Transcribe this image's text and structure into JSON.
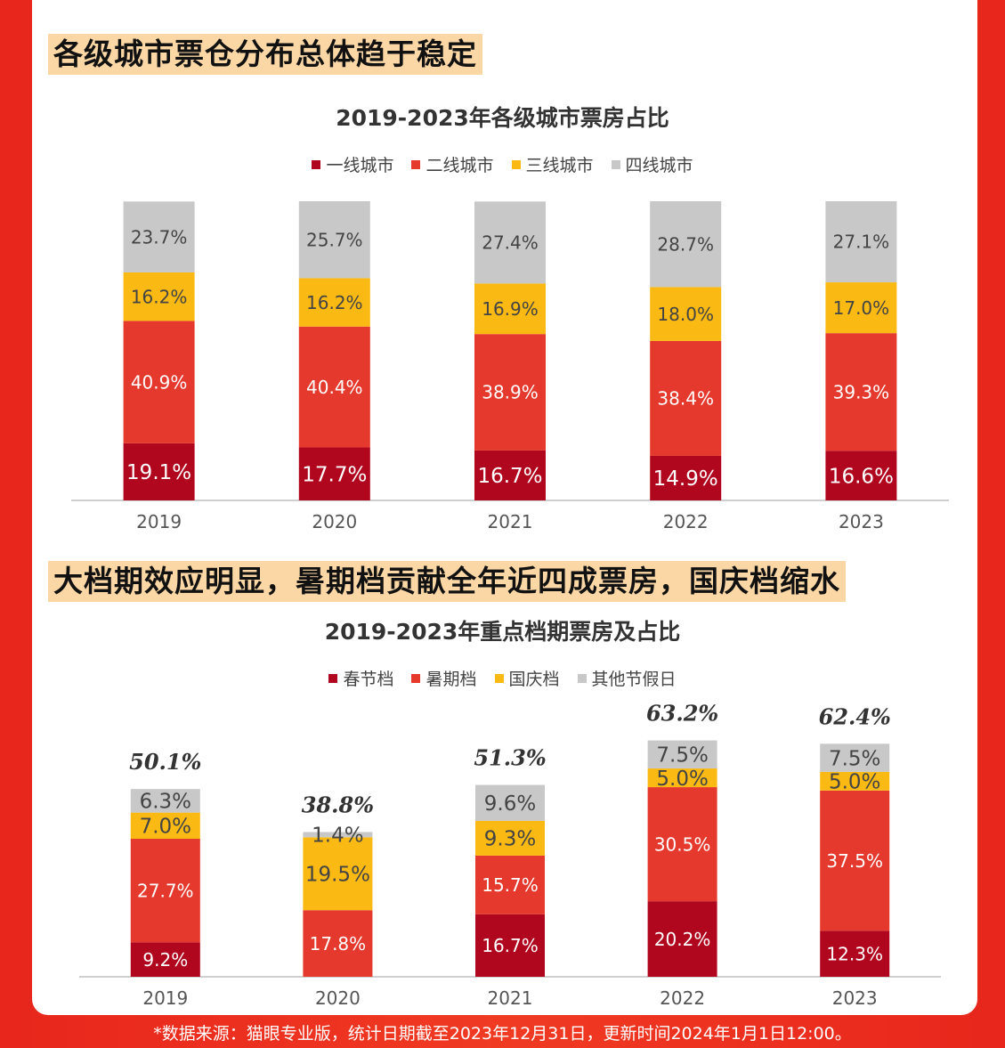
{
  "section1": {
    "headline": "各级城市票仓分布总体趋于稳定"
  },
  "section2": {
    "headline": "大档期效应明显，暑期档贡献全年近四成票房，国庆档缩水"
  },
  "footnote": "*数据来源：猫眼专业版，统计日期截至2023年12月31日，更新时间2024年1月1日12:00。",
  "colors": {
    "dark_red": "#b0071e",
    "red": "#e4392c",
    "yellow": "#fbb913",
    "gray": "#c8c8c8"
  },
  "chart_data": [
    {
      "type": "bar",
      "stacked": true,
      "title": "2019-2023年各级城市票房占比",
      "categories": [
        "2019",
        "2020",
        "2021",
        "2022",
        "2023"
      ],
      "series": [
        {
          "name": "一线城市",
          "values": [
            19.1,
            17.7,
            16.7,
            14.9,
            16.6
          ],
          "labels": [
            "19.1%",
            "17.7%",
            "16.7%",
            "14.9%",
            "16.6%"
          ]
        },
        {
          "name": "二线城市",
          "values": [
            40.9,
            40.4,
            38.9,
            38.4,
            39.3
          ],
          "labels": [
            "40.9%",
            "40.4%",
            "38.9%",
            "38.4%",
            "39.3%"
          ]
        },
        {
          "name": "三线城市",
          "values": [
            16.2,
            16.2,
            16.9,
            18.0,
            17.0
          ],
          "labels": [
            "16.2%",
            "16.2%",
            "16.9%",
            "18.0%",
            "17.0%"
          ]
        },
        {
          "name": "四线城市",
          "values": [
            23.7,
            25.7,
            27.4,
            28.7,
            27.1
          ],
          "labels": [
            "23.7%",
            "25.7%",
            "27.4%",
            "28.7%",
            "27.1%"
          ]
        }
      ],
      "legend_position": "top",
      "grid": false
    },
    {
      "type": "bar",
      "stacked": true,
      "title": "2019-2023年重点档期票房及占比",
      "categories": [
        "2019",
        "2020",
        "2021",
        "2022",
        "2023"
      ],
      "series": [
        {
          "name": "春节档",
          "values": [
            9.2,
            0,
            16.7,
            20.2,
            12.3
          ],
          "labels": [
            "9.2%",
            "",
            "16.7%",
            "20.2%",
            "12.3%"
          ]
        },
        {
          "name": "暑期档",
          "values": [
            27.7,
            17.8,
            15.7,
            30.5,
            37.5
          ],
          "labels": [
            "27.7%",
            "17.8%",
            "15.7%",
            "30.5%",
            "37.5%"
          ]
        },
        {
          "name": "国庆档",
          "values": [
            7.0,
            19.5,
            9.3,
            5.0,
            5.0
          ],
          "labels": [
            "7.0%",
            "19.5%",
            "9.3%",
            "5.0%",
            "5.0%"
          ]
        },
        {
          "name": "其他节假日",
          "values": [
            6.3,
            1.4,
            9.6,
            7.5,
            7.5
          ],
          "labels": [
            "6.3%",
            "1.4%",
            "9.6%",
            "7.5%",
            "7.5%"
          ]
        }
      ],
      "totals": [
        "50.1%",
        "38.8%",
        "51.3%",
        "63.2%",
        "62.4%"
      ],
      "total_values": [
        50.1,
        38.8,
        51.3,
        63.2,
        62.4
      ],
      "legend_position": "top",
      "grid": false
    }
  ]
}
